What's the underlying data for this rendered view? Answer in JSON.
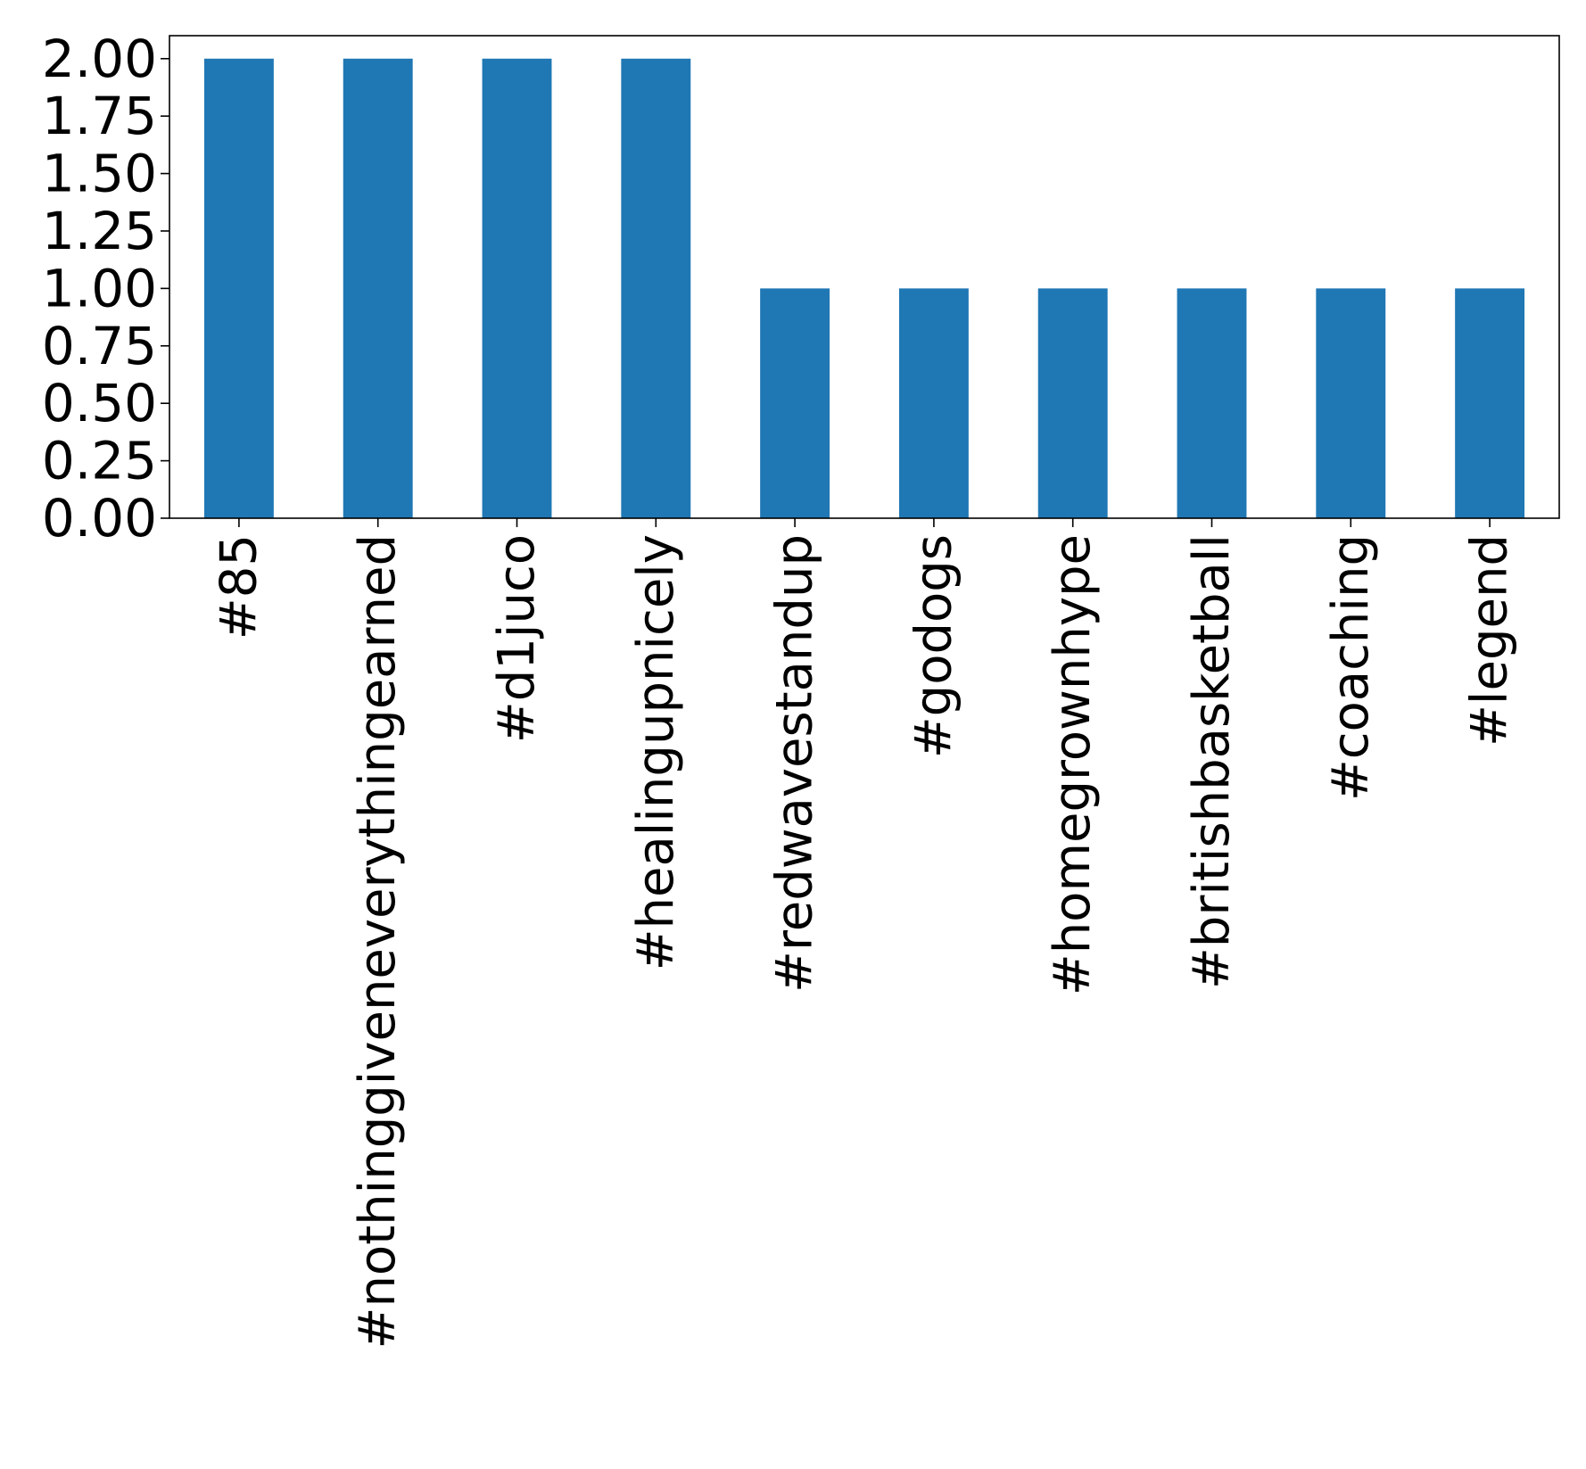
{
  "chart_data": {
    "type": "bar",
    "categories": [
      "#85",
      "#nothinggiveneverythingearned",
      "#d1juco",
      "#healingupnicely",
      "#redwavestandup",
      "#godogs",
      "#homegrownhype",
      "#britishbasketball",
      "#coaching",
      "#legend"
    ],
    "values": [
      2,
      2,
      2,
      2,
      1,
      1,
      1,
      1,
      1,
      1
    ],
    "title": "",
    "xlabel": "",
    "ylabel": "",
    "ylim": [
      0,
      2.1
    ],
    "yticks": [
      "0.00",
      "0.25",
      "0.50",
      "0.75",
      "1.00",
      "1.25",
      "1.50",
      "1.75",
      "2.00"
    ],
    "bar_color": "#1f77b4",
    "grid": false,
    "x_tick_rotation": "vertical",
    "legend": "none"
  }
}
